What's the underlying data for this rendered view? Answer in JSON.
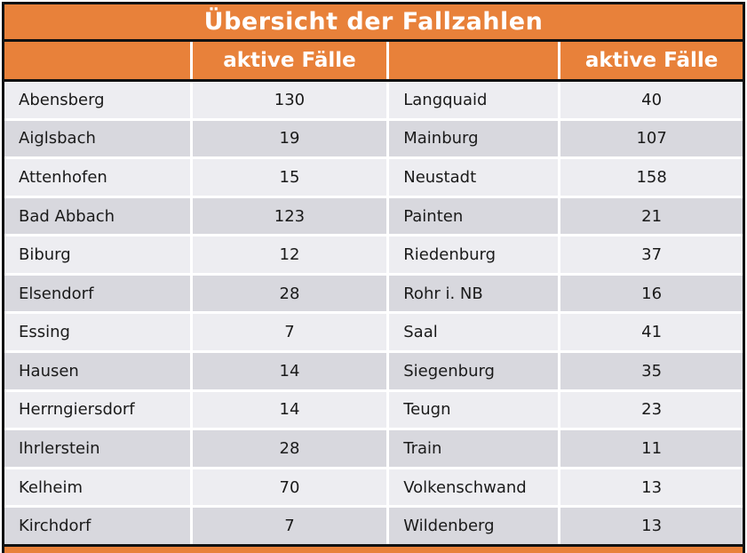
{
  "colors": {
    "accent_orange": "#E8813A",
    "border_black": "#111111",
    "row_light": "#EDEDF1",
    "row_dark": "#D8D8DE",
    "header_text": "#FFFFFF",
    "body_text": "#1A1A1A"
  },
  "table": {
    "title": "Übersicht der Fallzahlen",
    "header_label": "aktive Fälle",
    "rows": [
      {
        "left_name": "Abensberg",
        "left_value": "130",
        "right_name": "Langquaid",
        "right_value": "40"
      },
      {
        "left_name": "Aiglsbach",
        "left_value": "19",
        "right_name": "Mainburg",
        "right_value": "107"
      },
      {
        "left_name": "Attenhofen",
        "left_value": "15",
        "right_name": "Neustadt",
        "right_value": "158"
      },
      {
        "left_name": "Bad Abbach",
        "left_value": "123",
        "right_name": "Painten",
        "right_value": "21"
      },
      {
        "left_name": "Biburg",
        "left_value": "12",
        "right_name": "Riedenburg",
        "right_value": "37"
      },
      {
        "left_name": "Elsendorf",
        "left_value": "28",
        "right_name": "Rohr i. NB",
        "right_value": "16"
      },
      {
        "left_name": "Essing",
        "left_value": "7",
        "right_name": "Saal",
        "right_value": "41"
      },
      {
        "left_name": "Hausen",
        "left_value": "14",
        "right_name": "Siegenburg",
        "right_value": "35"
      },
      {
        "left_name": "Herrngiersdorf",
        "left_value": "14",
        "right_name": "Teugn",
        "right_value": "23"
      },
      {
        "left_name": "Ihrlerstein",
        "left_value": "28",
        "right_name": "Train",
        "right_value": "11"
      },
      {
        "left_name": "Kelheim",
        "left_value": "70",
        "right_name": "Volkenschwand",
        "right_value": "13"
      },
      {
        "left_name": "Kirchdorf",
        "left_value": "7",
        "right_name": "Wildenberg",
        "right_value": "13"
      }
    ]
  },
  "chart_data": {
    "type": "table",
    "title": "Übersicht der Fallzahlen",
    "columns": [
      "",
      "aktive Fälle",
      "",
      "aktive Fälle"
    ],
    "records": [
      {
        "name": "Abensberg",
        "aktive_faelle": 130
      },
      {
        "name": "Aiglsbach",
        "aktive_faelle": 19
      },
      {
        "name": "Attenhofen",
        "aktive_faelle": 15
      },
      {
        "name": "Bad Abbach",
        "aktive_faelle": 123
      },
      {
        "name": "Biburg",
        "aktive_faelle": 12
      },
      {
        "name": "Elsendorf",
        "aktive_faelle": 28
      },
      {
        "name": "Essing",
        "aktive_faelle": 7
      },
      {
        "name": "Hausen",
        "aktive_faelle": 14
      },
      {
        "name": "Herrngiersdorf",
        "aktive_faelle": 14
      },
      {
        "name": "Ihrlerstein",
        "aktive_faelle": 28
      },
      {
        "name": "Kelheim",
        "aktive_faelle": 70
      },
      {
        "name": "Kirchdorf",
        "aktive_faelle": 7
      },
      {
        "name": "Langquaid",
        "aktive_faelle": 40
      },
      {
        "name": "Mainburg",
        "aktive_faelle": 107
      },
      {
        "name": "Neustadt",
        "aktive_faelle": 158
      },
      {
        "name": "Painten",
        "aktive_faelle": 21
      },
      {
        "name": "Riedenburg",
        "aktive_faelle": 37
      },
      {
        "name": "Rohr i. NB",
        "aktive_faelle": 16
      },
      {
        "name": "Saal",
        "aktive_faelle": 41
      },
      {
        "name": "Siegenburg",
        "aktive_faelle": 35
      },
      {
        "name": "Teugn",
        "aktive_faelle": 23
      },
      {
        "name": "Train",
        "aktive_faelle": 11
      },
      {
        "name": "Volkenschwand",
        "aktive_faelle": 13
      },
      {
        "name": "Wildenberg",
        "aktive_faelle": 13
      }
    ]
  }
}
